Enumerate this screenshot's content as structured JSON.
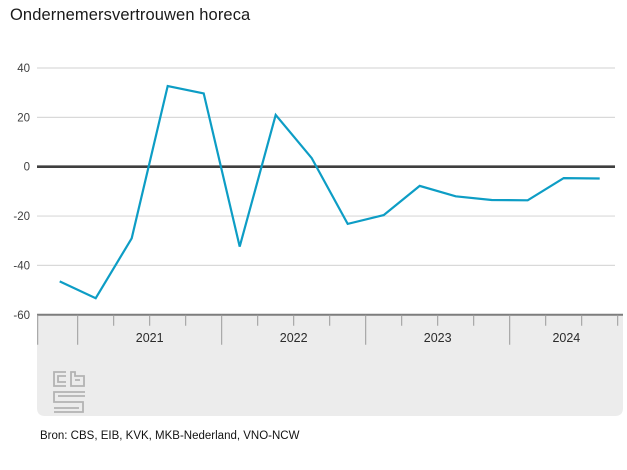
{
  "title": "Ondernemersvertrouwen horeca",
  "source": "Bron: CBS, EIB, KVK, MKB-Nederland, VNO-NCW",
  "colors": {
    "line": "#0d9dc5",
    "grid": "#d9d9d9",
    "zero_line": "#3f3f3f",
    "axis_panel": "#ececec",
    "axis_border": "#7d7d7d",
    "tick": "#9a9a9a",
    "axis_text": "#404040",
    "year_text": "#2b2b2b",
    "logo": "#b3b3b3"
  },
  "chart_data": {
    "type": "line",
    "title": "Ondernemersvertrouwen horeca",
    "series_name": "Ondernemersvertrouwen horeca",
    "frequency": "quarterly",
    "x": [
      "2020-Q4",
      "2021-Q1",
      "2021-Q2",
      "2021-Q3",
      "2021-Q4",
      "2022-Q1",
      "2022-Q2",
      "2022-Q3",
      "2022-Q4",
      "2023-Q1",
      "2023-Q2",
      "2023-Q3",
      "2023-Q4",
      "2024-Q1",
      "2024-Q2",
      "2024-Q3"
    ],
    "values": [
      -46.5,
      -53.3,
      -29.0,
      32.7,
      29.7,
      -32.4,
      21.0,
      3.5,
      -23.2,
      -19.6,
      -7.8,
      -12.0,
      -13.5,
      -13.6,
      -4.6,
      -4.8
    ],
    "year_labels": [
      "2021",
      "2022",
      "2023",
      "2024"
    ],
    "yticks": [
      40,
      20,
      0,
      -20,
      -40,
      -60
    ],
    "ylim": [
      -60,
      43
    ],
    "xlabel": "",
    "ylabel": "",
    "grid": true,
    "zero_line": true,
    "legend": "none"
  }
}
